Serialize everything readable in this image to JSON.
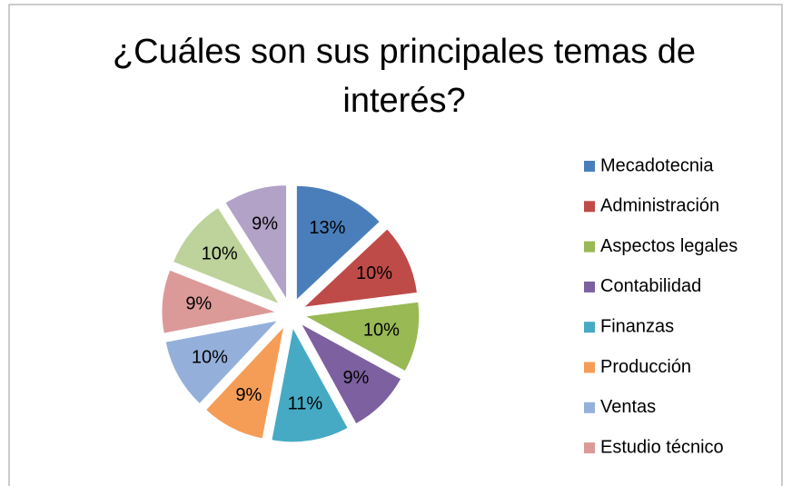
{
  "chart_data": {
    "type": "pie",
    "title": "¿Cuáles son sus principales temas de interés?",
    "categories": [
      "Mecadotecnia",
      "Administración",
      "Aspectos legales",
      "Contabilidad",
      "Finanzas",
      "Producción",
      "Ventas",
      "Estudio técnico",
      null,
      null
    ],
    "values": [
      13,
      10,
      10,
      9,
      11,
      9,
      10,
      9,
      10,
      9
    ],
    "value_labels": [
      "13%",
      "10%",
      "10%",
      "9%",
      "11%",
      "9%",
      "10%",
      "9%",
      "10%",
      "9%"
    ],
    "colors": [
      "#4a7ebb",
      "#be4b48",
      "#98b954",
      "#7d60a0",
      "#46aac4",
      "#f59d56",
      "#94b0da",
      "#db9998",
      "#bdd39b",
      "#b2a2c7"
    ],
    "legend": "right"
  }
}
